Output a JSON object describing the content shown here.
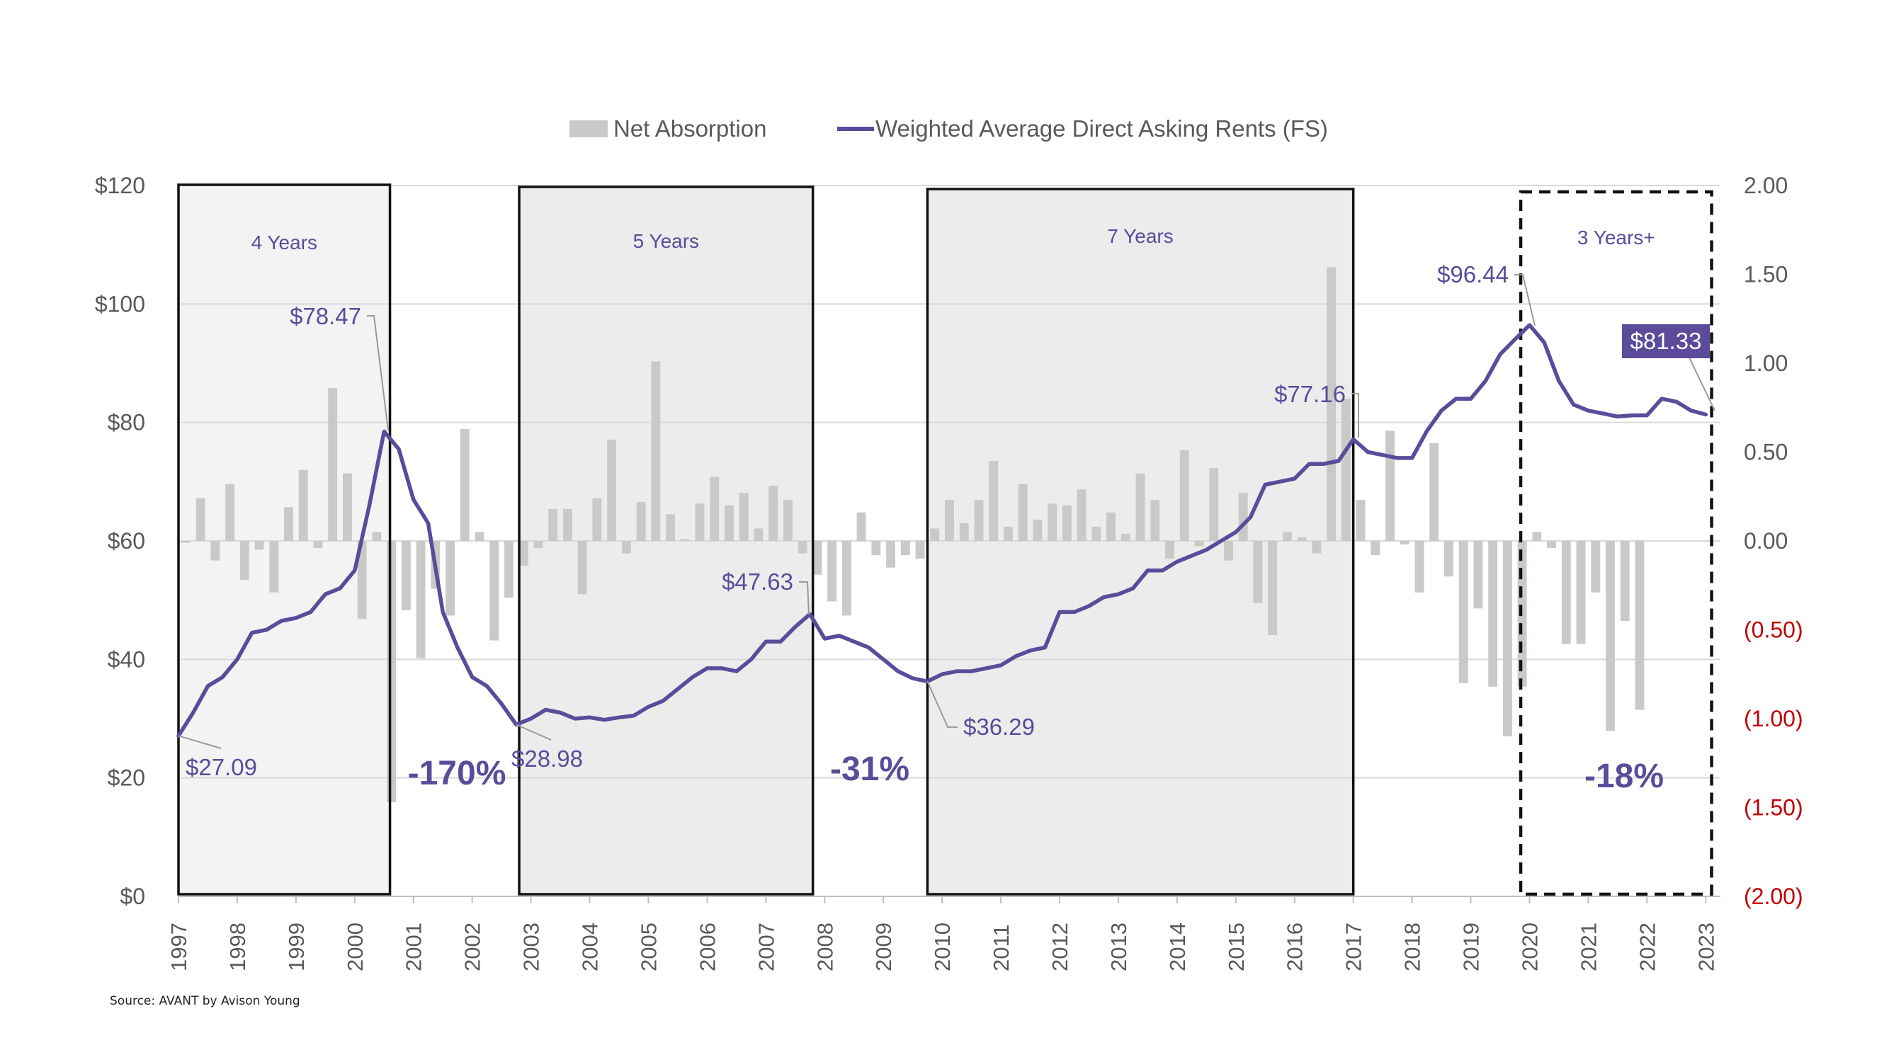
{
  "chart_data": {
    "type": "bar+line",
    "legend": [
      {
        "label": "Net Absorption",
        "kind": "bar",
        "color": "#cbc8c8"
      },
      {
        "label": "Weighted Average Direct Asking Rents (FS)",
        "kind": "line",
        "color": "#5b4b9a"
      }
    ],
    "legend_position": "top-center",
    "x_axis": {
      "start": 1997.0,
      "end": 2023.25,
      "tick_labels": [
        "1997",
        "1998",
        "1999",
        "2000",
        "2001",
        "2002",
        "2003",
        "2004",
        "2005",
        "2006",
        "2007",
        "2008",
        "2009",
        "2010",
        "2011",
        "2012",
        "2013",
        "2014",
        "2015",
        "2016",
        "2017",
        "2018",
        "2019",
        "2020",
        "2021",
        "2022",
        "2023"
      ]
    },
    "y_left": {
      "min": 0,
      "max": 120,
      "ticks": [
        "$0",
        "$20",
        "$40",
        "$60",
        "$80",
        "$100",
        "$120"
      ]
    },
    "y_right": {
      "min": -2.0,
      "max": 2.0,
      "ticks": [
        "(2.00)",
        "(1.50)",
        "(1.00)",
        "(0.50)",
        "0.00",
        "0.50",
        "1.00",
        "1.50",
        "2.00"
      ],
      "negative_color": "#c00000"
    },
    "grid": "horizontal",
    "rent_series": [
      {
        "x": 1997.0,
        "y": 27.09
      },
      {
        "x": 1997.25,
        "y": 31
      },
      {
        "x": 1997.5,
        "y": 35.5
      },
      {
        "x": 1997.75,
        "y": 37
      },
      {
        "x": 1998.0,
        "y": 40
      },
      {
        "x": 1998.25,
        "y": 44.5
      },
      {
        "x": 1998.5,
        "y": 45
      },
      {
        "x": 1998.75,
        "y": 46.5
      },
      {
        "x": 1999.0,
        "y": 47
      },
      {
        "x": 1999.25,
        "y": 48
      },
      {
        "x": 1999.5,
        "y": 51
      },
      {
        "x": 1999.75,
        "y": 52
      },
      {
        "x": 2000.0,
        "y": 55
      },
      {
        "x": 2000.25,
        "y": 66
      },
      {
        "x": 2000.5,
        "y": 78.47
      },
      {
        "x": 2000.75,
        "y": 75.5
      },
      {
        "x": 2001.0,
        "y": 67
      },
      {
        "x": 2001.25,
        "y": 63
      },
      {
        "x": 2001.5,
        "y": 48
      },
      {
        "x": 2001.75,
        "y": 42
      },
      {
        "x": 2002.0,
        "y": 37
      },
      {
        "x": 2002.25,
        "y": 35.5
      },
      {
        "x": 2002.5,
        "y": 32.5
      },
      {
        "x": 2002.75,
        "y": 28.98
      },
      {
        "x": 2003.0,
        "y": 30
      },
      {
        "x": 2003.25,
        "y": 31.5
      },
      {
        "x": 2003.5,
        "y": 31
      },
      {
        "x": 2003.75,
        "y": 30
      },
      {
        "x": 2004.0,
        "y": 30.2
      },
      {
        "x": 2004.25,
        "y": 29.8
      },
      {
        "x": 2004.5,
        "y": 30.2
      },
      {
        "x": 2004.75,
        "y": 30.5
      },
      {
        "x": 2005.0,
        "y": 32
      },
      {
        "x": 2005.25,
        "y": 33
      },
      {
        "x": 2005.5,
        "y": 35
      },
      {
        "x": 2005.75,
        "y": 37
      },
      {
        "x": 2006.0,
        "y": 38.5
      },
      {
        "x": 2006.25,
        "y": 38.5
      },
      {
        "x": 2006.5,
        "y": 38
      },
      {
        "x": 2006.75,
        "y": 40
      },
      {
        "x": 2007.0,
        "y": 43
      },
      {
        "x": 2007.25,
        "y": 43
      },
      {
        "x": 2007.5,
        "y": 45.5
      },
      {
        "x": 2007.75,
        "y": 47.63
      },
      {
        "x": 2008.0,
        "y": 43.5
      },
      {
        "x": 2008.25,
        "y": 44
      },
      {
        "x": 2008.5,
        "y": 43
      },
      {
        "x": 2008.75,
        "y": 42
      },
      {
        "x": 2009.0,
        "y": 40
      },
      {
        "x": 2009.25,
        "y": 38
      },
      {
        "x": 2009.5,
        "y": 36.8
      },
      {
        "x": 2009.75,
        "y": 36.29
      },
      {
        "x": 2010.0,
        "y": 37.5
      },
      {
        "x": 2010.25,
        "y": 38
      },
      {
        "x": 2010.5,
        "y": 38
      },
      {
        "x": 2010.75,
        "y": 38.5
      },
      {
        "x": 2011.0,
        "y": 39
      },
      {
        "x": 2011.25,
        "y": 40.5
      },
      {
        "x": 2011.5,
        "y": 41.5
      },
      {
        "x": 2011.75,
        "y": 42
      },
      {
        "x": 2012.0,
        "y": 48
      },
      {
        "x": 2012.25,
        "y": 48
      },
      {
        "x": 2012.5,
        "y": 49
      },
      {
        "x": 2012.75,
        "y": 50.5
      },
      {
        "x": 2013.0,
        "y": 51
      },
      {
        "x": 2013.25,
        "y": 52
      },
      {
        "x": 2013.5,
        "y": 55
      },
      {
        "x": 2013.75,
        "y": 55
      },
      {
        "x": 2014.0,
        "y": 56.5
      },
      {
        "x": 2014.25,
        "y": 57.5
      },
      {
        "x": 2014.5,
        "y": 58.5
      },
      {
        "x": 2014.75,
        "y": 60
      },
      {
        "x": 2015.0,
        "y": 61.5
      },
      {
        "x": 2015.25,
        "y": 64
      },
      {
        "x": 2015.5,
        "y": 69.5
      },
      {
        "x": 2015.75,
        "y": 70
      },
      {
        "x": 2016.0,
        "y": 70.5
      },
      {
        "x": 2016.25,
        "y": 73
      },
      {
        "x": 2016.5,
        "y": 73
      },
      {
        "x": 2016.75,
        "y": 73.5
      },
      {
        "x": 2017.0,
        "y": 77.16
      },
      {
        "x": 2017.25,
        "y": 75
      },
      {
        "x": 2017.5,
        "y": 74.5
      },
      {
        "x": 2017.75,
        "y": 74
      },
      {
        "x": 2018.0,
        "y": 74
      },
      {
        "x": 2018.25,
        "y": 78.5
      },
      {
        "x": 2018.5,
        "y": 82
      },
      {
        "x": 2018.75,
        "y": 84
      },
      {
        "x": 2019.0,
        "y": 84
      },
      {
        "x": 2019.25,
        "y": 87
      },
      {
        "x": 2019.5,
        "y": 91.5
      },
      {
        "x": 2019.75,
        "y": 94
      },
      {
        "x": 2020.0,
        "y": 96.44
      },
      {
        "x": 2020.25,
        "y": 93.5
      },
      {
        "x": 2020.5,
        "y": 87
      },
      {
        "x": 2020.75,
        "y": 83
      },
      {
        "x": 2021.0,
        "y": 82
      },
      {
        "x": 2021.25,
        "y": 81.5
      },
      {
        "x": 2021.5,
        "y": 81
      },
      {
        "x": 2021.75,
        "y": 81.2
      },
      {
        "x": 2022.0,
        "y": 81.2
      },
      {
        "x": 2022.25,
        "y": 84
      },
      {
        "x": 2022.5,
        "y": 83.5
      },
      {
        "x": 2022.75,
        "y": 82
      },
      {
        "x": 2023.0,
        "y": 81.33
      }
    ],
    "absorption_series": [
      {
        "x": 1997.125,
        "y": -0.01
      },
      {
        "x": 1997.375,
        "y": 0.24
      },
      {
        "x": 1997.625,
        "y": -0.11
      },
      {
        "x": 1997.875,
        "y": 0.32
      },
      {
        "x": 1998.125,
        "y": -0.22
      },
      {
        "x": 1998.375,
        "y": -0.05
      },
      {
        "x": 1998.625,
        "y": -0.29
      },
      {
        "x": 1998.875,
        "y": 0.19
      },
      {
        "x": 1999.125,
        "y": 0.4
      },
      {
        "x": 1999.375,
        "y": -0.04
      },
      {
        "x": 1999.625,
        "y": 0.86
      },
      {
        "x": 1999.875,
        "y": 0.38
      },
      {
        "x": 2000.125,
        "y": -0.44
      },
      {
        "x": 2000.375,
        "y": 0.05
      },
      {
        "x": 2000.625,
        "y": -1.47
      },
      {
        "x": 2000.875,
        "y": -0.39
      },
      {
        "x": 2001.125,
        "y": -0.66
      },
      {
        "x": 2001.375,
        "y": -0.27
      },
      {
        "x": 2001.625,
        "y": -0.42
      },
      {
        "x": 2001.875,
        "y": 0.63
      },
      {
        "x": 2002.125,
        "y": 0.05
      },
      {
        "x": 2002.375,
        "y": -0.56
      },
      {
        "x": 2002.625,
        "y": -0.32
      },
      {
        "x": 2002.875,
        "y": -0.14
      },
      {
        "x": 2003.125,
        "y": -0.04
      },
      {
        "x": 2003.375,
        "y": 0.18
      },
      {
        "x": 2003.625,
        "y": 0.18
      },
      {
        "x": 2003.875,
        "y": -0.3
      },
      {
        "x": 2004.125,
        "y": 0.24
      },
      {
        "x": 2004.375,
        "y": 0.57
      },
      {
        "x": 2004.625,
        "y": -0.07
      },
      {
        "x": 2004.875,
        "y": 0.22
      },
      {
        "x": 2005.125,
        "y": 1.01
      },
      {
        "x": 2005.375,
        "y": 0.15
      },
      {
        "x": 2005.625,
        "y": 0.01
      },
      {
        "x": 2005.875,
        "y": 0.21
      },
      {
        "x": 2006.125,
        "y": 0.36
      },
      {
        "x": 2006.375,
        "y": 0.2
      },
      {
        "x": 2006.625,
        "y": 0.27
      },
      {
        "x": 2006.875,
        "y": 0.07
      },
      {
        "x": 2007.125,
        "y": 0.31
      },
      {
        "x": 2007.375,
        "y": 0.23
      },
      {
        "x": 2007.625,
        "y": -0.07
      },
      {
        "x": 2007.875,
        "y": -0.19
      },
      {
        "x": 2008.125,
        "y": -0.34
      },
      {
        "x": 2008.375,
        "y": -0.42
      },
      {
        "x": 2008.625,
        "y": 0.16
      },
      {
        "x": 2008.875,
        "y": -0.08
      },
      {
        "x": 2009.125,
        "y": -0.15
      },
      {
        "x": 2009.375,
        "y": -0.08
      },
      {
        "x": 2009.625,
        "y": -0.1
      },
      {
        "x": 2009.875,
        "y": 0.07
      },
      {
        "x": 2010.125,
        "y": 0.23
      },
      {
        "x": 2010.375,
        "y": 0.1
      },
      {
        "x": 2010.625,
        "y": 0.23
      },
      {
        "x": 2010.875,
        "y": 0.45
      },
      {
        "x": 2011.125,
        "y": 0.08
      },
      {
        "x": 2011.375,
        "y": 0.32
      },
      {
        "x": 2011.625,
        "y": 0.12
      },
      {
        "x": 2011.875,
        "y": 0.21
      },
      {
        "x": 2012.125,
        "y": 0.2
      },
      {
        "x": 2012.375,
        "y": 0.29
      },
      {
        "x": 2012.625,
        "y": 0.08
      },
      {
        "x": 2012.875,
        "y": 0.16
      },
      {
        "x": 2013.125,
        "y": 0.04
      },
      {
        "x": 2013.375,
        "y": 0.38
      },
      {
        "x": 2013.625,
        "y": 0.23
      },
      {
        "x": 2013.875,
        "y": -0.1
      },
      {
        "x": 2014.125,
        "y": 0.51
      },
      {
        "x": 2014.375,
        "y": -0.03
      },
      {
        "x": 2014.625,
        "y": 0.41
      },
      {
        "x": 2014.875,
        "y": -0.11
      },
      {
        "x": 2015.125,
        "y": 0.27
      },
      {
        "x": 2015.375,
        "y": -0.35
      },
      {
        "x": 2015.625,
        "y": -0.53
      },
      {
        "x": 2015.875,
        "y": 0.05
      },
      {
        "x": 2016.125,
        "y": 0.02
      },
      {
        "x": 2016.375,
        "y": -0.07
      },
      {
        "x": 2016.625,
        "y": 1.54
      },
      {
        "x": 2016.875,
        "y": 0.8
      },
      {
        "x": 2017.125,
        "y": 0.23
      },
      {
        "x": 2017.375,
        "y": -0.08
      },
      {
        "x": 2017.625,
        "y": 0.62
      },
      {
        "x": 2017.875,
        "y": -0.02
      },
      {
        "x": 2018.125,
        "y": -0.29
      },
      {
        "x": 2018.375,
        "y": 0.55
      },
      {
        "x": 2018.625,
        "y": -0.2
      },
      {
        "x": 2018.875,
        "y": -0.8
      },
      {
        "x": 2019.125,
        "y": -0.38
      },
      {
        "x": 2019.375,
        "y": -0.82
      },
      {
        "x": 2019.625,
        "y": -1.1
      },
      {
        "x": 2019.875,
        "y": -0.82
      },
      {
        "x": 2020.125,
        "y": 0.05
      },
      {
        "x": 2020.375,
        "y": -0.04
      },
      {
        "x": 2020.625,
        "y": -0.58
      },
      {
        "x": 2020.875,
        "y": -0.58
      },
      {
        "x": 2021.125,
        "y": -0.29
      },
      {
        "x": 2021.375,
        "y": -1.07
      },
      {
        "x": 2021.625,
        "y": -0.45
      },
      {
        "x": 2021.875,
        "y": -0.95
      }
    ],
    "periods": [
      {
        "label": "4 Years",
        "start": 1997.0,
        "end": 2000.6,
        "style": "solid-shaded"
      },
      {
        "label": "5 Years",
        "start": 2002.8,
        "end": 2007.8,
        "style": "solid-shaded"
      },
      {
        "label": "7 Years",
        "start": 2009.75,
        "end": 2017.0,
        "style": "solid-shaded"
      },
      {
        "label": "3 Years+",
        "start": 2019.85,
        "end": 2023.1,
        "style": "dashed"
      }
    ],
    "annotations": [
      {
        "text": "$27.09",
        "x": 1997.0,
        "y": 27.09
      },
      {
        "text": "$78.47",
        "x": 2000.5,
        "y": 78.47
      },
      {
        "text": "$28.98",
        "x": 2002.75,
        "y": 28.98
      },
      {
        "text": "$47.63",
        "x": 2007.75,
        "y": 47.63
      },
      {
        "text": "$36.29",
        "x": 2009.75,
        "y": 36.29
      },
      {
        "text": "$77.16",
        "x": 2017.0,
        "y": 77.16
      },
      {
        "text": "$96.44",
        "x": 2020.0,
        "y": 96.44
      },
      {
        "text": "$81.33",
        "x": 2023.0,
        "y": 81.33,
        "boxed": true
      }
    ],
    "changes": [
      "-170%",
      "-31%",
      "-18%"
    ]
  },
  "source": "Source: AVANT by Avison Young"
}
